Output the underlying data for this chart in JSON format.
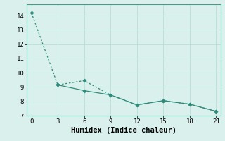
{
  "line1_x": [
    0,
    3,
    6,
    9,
    12,
    15,
    18,
    21
  ],
  "line1_y": [
    14.2,
    9.15,
    9.45,
    8.45,
    7.75,
    8.05,
    7.8,
    7.3
  ],
  "line2_x": [
    0,
    3,
    6,
    9,
    12,
    15,
    18,
    21
  ],
  "line2_y": [
    14.2,
    9.15,
    8.75,
    8.45,
    7.75,
    8.05,
    7.8,
    7.3
  ],
  "line_color": "#2e8b7a",
  "background_color": "#d9f0ec",
  "grid_color": "#b8ddd8",
  "xlabel": "Humidex (Indice chaleur)",
  "xlim": [
    -0.5,
    21.5
  ],
  "ylim": [
    7.0,
    14.8
  ],
  "yticks": [
    7,
    8,
    9,
    10,
    11,
    12,
    13,
    14
  ],
  "xticks": [
    0,
    3,
    6,
    9,
    12,
    15,
    18,
    21
  ],
  "xlabel_fontsize": 7.5,
  "tick_fontsize": 6.5
}
